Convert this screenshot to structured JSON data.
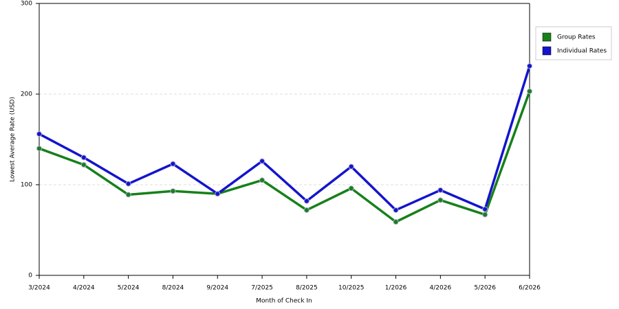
{
  "chart_data": {
    "type": "line",
    "x_label": "Month of Check In",
    "y_label": "Lowest Average Rate (USD)",
    "categories": [
      "3/2024",
      "4/2024",
      "5/2024",
      "8/2024",
      "9/2024",
      "7/2025",
      "8/2025",
      "10/2025",
      "1/2026",
      "4/2026",
      "5/2026",
      "6/2026"
    ],
    "series": [
      {
        "name": "Group Rates",
        "color": "#17801a",
        "values": [
          140,
          122,
          89,
          93,
          90,
          105,
          72,
          96,
          59,
          83,
          67,
          203
        ]
      },
      {
        "name": "Individual Rates",
        "color": "#1414cc",
        "values": [
          156,
          130,
          101,
          123,
          90,
          126,
          82,
          120,
          72,
          94,
          73,
          231
        ]
      }
    ],
    "ylim": [
      0,
      300
    ],
    "yticks": [
      0,
      100,
      200,
      300
    ],
    "grid": true,
    "legend": "right"
  }
}
